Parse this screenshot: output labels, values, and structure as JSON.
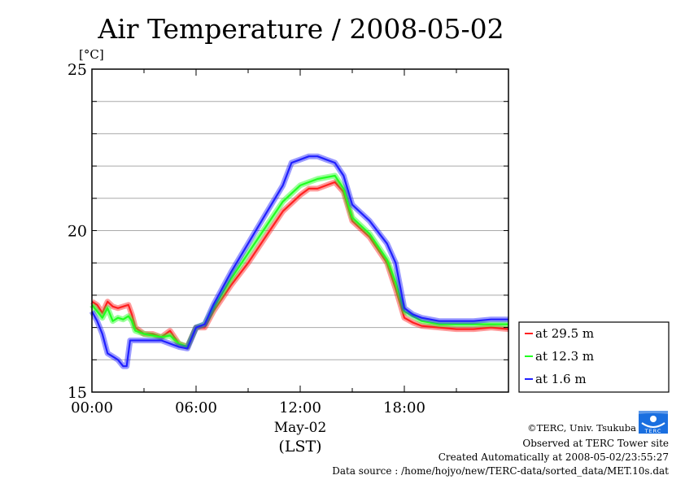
{
  "chart_data": {
    "type": "line",
    "title": "Air Temperature / 2008-05-02",
    "ylabel": "[°C]",
    "xlabel": "May-02",
    "xlabel2": "(LST)",
    "ylim": [
      15,
      25
    ],
    "xlim": [
      0,
      24
    ],
    "yticks": [
      {
        "v": 15,
        "label": "15"
      },
      {
        "v": 20,
        "label": "20"
      },
      {
        "v": 25,
        "label": "25"
      }
    ],
    "xticks": [
      {
        "v": 0,
        "label": "00:00"
      },
      {
        "v": 6,
        "label": "06:00"
      },
      {
        "v": 12,
        "label": "12:00"
      },
      {
        "v": 18,
        "label": "18:00"
      }
    ],
    "grid": true,
    "legend_position": "right-bottom",
    "series": [
      {
        "name": "at 29.5 m",
        "color": "#ff2020",
        "x": [
          0,
          0.3,
          0.6,
          0.9,
          1.2,
          1.5,
          1.8,
          2.1,
          2.3,
          2.5,
          3,
          3.5,
          4,
          4.5,
          5,
          5.5,
          6,
          6.5,
          7,
          8,
          9,
          10,
          11,
          12,
          12.5,
          13,
          13.5,
          14,
          14.5,
          15,
          16,
          17,
          17.5,
          18,
          18.5,
          19,
          20,
          21,
          22,
          23,
          24
        ],
        "values": [
          17.8,
          17.7,
          17.45,
          17.8,
          17.65,
          17.6,
          17.65,
          17.7,
          17.4,
          17.0,
          16.8,
          16.8,
          16.7,
          16.9,
          16.5,
          16.4,
          17.0,
          17.0,
          17.5,
          18.3,
          19.0,
          19.8,
          20.6,
          21.1,
          21.3,
          21.3,
          21.4,
          21.5,
          21.2,
          20.3,
          19.8,
          19.0,
          18.2,
          17.3,
          17.15,
          17.05,
          17.0,
          16.95,
          16.95,
          17.0,
          16.95
        ]
      },
      {
        "name": "at 12.3 m",
        "color": "#20ff20",
        "x": [
          0,
          0.3,
          0.6,
          0.9,
          1.2,
          1.5,
          1.8,
          2.1,
          2.3,
          2.5,
          3,
          3.5,
          4,
          4.5,
          5,
          5.5,
          6,
          6.5,
          7,
          8,
          9,
          10,
          11,
          12,
          12.5,
          13,
          13.5,
          14,
          14.5,
          15,
          16,
          17,
          17.5,
          18,
          18.5,
          19,
          20,
          21,
          22,
          23,
          24
        ],
        "values": [
          17.7,
          17.5,
          17.3,
          17.6,
          17.2,
          17.3,
          17.25,
          17.35,
          17.2,
          16.9,
          16.8,
          16.75,
          16.7,
          16.75,
          16.5,
          16.4,
          17.0,
          17.1,
          17.6,
          18.5,
          19.3,
          20.1,
          20.9,
          21.4,
          21.5,
          21.6,
          21.65,
          21.7,
          21.3,
          20.4,
          19.9,
          19.1,
          18.4,
          17.5,
          17.35,
          17.2,
          17.1,
          17.1,
          17.1,
          17.1,
          17.1
        ]
      },
      {
        "name": "at 1.6 m",
        "color": "#2020ff",
        "x": [
          0,
          0.3,
          0.6,
          0.9,
          1.2,
          1.5,
          1.8,
          2.0,
          2.2,
          2.5,
          3,
          3.5,
          4,
          4.5,
          5,
          5.5,
          6,
          6.5,
          7,
          8,
          9,
          10,
          11,
          11.5,
          12,
          12.5,
          13,
          13.5,
          14,
          14.5,
          15,
          16,
          17,
          17.5,
          18,
          18.5,
          19,
          20,
          21,
          22,
          23,
          24
        ],
        "values": [
          17.5,
          17.2,
          16.8,
          16.2,
          16.1,
          16.0,
          15.8,
          15.8,
          16.6,
          16.6,
          16.6,
          16.6,
          16.6,
          16.5,
          16.4,
          16.35,
          17.0,
          17.1,
          17.7,
          18.7,
          19.6,
          20.5,
          21.4,
          22.1,
          22.2,
          22.3,
          22.3,
          22.2,
          22.1,
          21.7,
          20.8,
          20.3,
          19.6,
          19.0,
          17.6,
          17.4,
          17.3,
          17.2,
          17.2,
          17.2,
          17.25,
          17.25
        ]
      }
    ]
  },
  "footer": {
    "copyright": "©TERC, Univ. Tsukuba",
    "site": "Observed at TERC Tower site",
    "created": "Created Automatically at 2008-05-02/23:55:27",
    "source": "Data source : /home/hojyo/new/TERC-data/sorted_data/MET.10s.dat",
    "logo_text": "TERC"
  }
}
